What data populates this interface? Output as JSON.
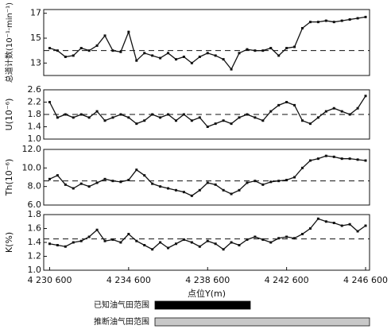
{
  "chart_data": [
    {
      "type": "line",
      "ylabel": "总道计数(10⁻¹·min⁻¹)",
      "color": "#111",
      "x": [
        4230600,
        4231000,
        4231400,
        4231800,
        4232200,
        4232600,
        4233000,
        4233400,
        4233800,
        4234200,
        4234600,
        4235000,
        4235400,
        4235800,
        4236200,
        4236600,
        4237000,
        4237400,
        4237800,
        4238200,
        4238600,
        4239000,
        4239400,
        4239800,
        4240200,
        4240600,
        4241000,
        4241400,
        4241800,
        4242200,
        4242600,
        4243000,
        4243400,
        4243800,
        4244200,
        4244600,
        4245000,
        4245400,
        4245800,
        4246200,
        4246600
      ],
      "values": [
        14.2,
        14.0,
        13.5,
        13.6,
        14.2,
        14.0,
        14.4,
        15.2,
        14.0,
        13.9,
        15.5,
        13.2,
        13.8,
        13.6,
        13.4,
        13.8,
        13.3,
        13.5,
        13.0,
        13.5,
        13.8,
        13.6,
        13.3,
        12.5,
        13.8,
        14.1,
        14.0,
        14.0,
        14.2,
        13.6,
        14.2,
        14.3,
        15.8,
        16.3,
        16.3,
        16.4,
        16.3,
        16.4,
        16.5,
        16.6,
        16.7
      ],
      "xlim": [
        4230300,
        4246800
      ],
      "ylim": [
        12,
        17.3
      ],
      "yticks": [
        13,
        15,
        17
      ],
      "reference": 14
    },
    {
      "type": "line",
      "ylabel": "U(10⁻⁶)",
      "color": "#111",
      "x": [
        4230600,
        4231000,
        4231400,
        4231800,
        4232200,
        4232600,
        4233000,
        4233400,
        4233800,
        4234200,
        4234600,
        4235000,
        4235400,
        4235800,
        4236200,
        4236600,
        4237000,
        4237400,
        4237800,
        4238200,
        4238600,
        4239000,
        4239400,
        4239800,
        4240200,
        4240600,
        4241000,
        4241400,
        4241800,
        4242200,
        4242600,
        4243000,
        4243400,
        4243800,
        4244200,
        4244600,
        4245000,
        4245400,
        4245800,
        4246200,
        4246600
      ],
      "values": [
        2.2,
        1.7,
        1.8,
        1.7,
        1.8,
        1.7,
        1.9,
        1.6,
        1.7,
        1.8,
        1.7,
        1.5,
        1.6,
        1.8,
        1.7,
        1.8,
        1.6,
        1.8,
        1.6,
        1.7,
        1.4,
        1.5,
        1.6,
        1.5,
        1.7,
        1.8,
        1.7,
        1.6,
        1.9,
        2.1,
        2.2,
        2.1,
        1.6,
        1.5,
        1.7,
        1.9,
        2.0,
        1.9,
        1.8,
        2.0,
        2.4
      ],
      "xlim": [
        4230300,
        4246800
      ],
      "ylim": [
        1.0,
        2.6
      ],
      "yticks": [
        {
          "value": 1,
          "label": "1.0"
        },
        1.4,
        1.8,
        2.2,
        2.6
      ],
      "reference": 1.8
    },
    {
      "type": "line",
      "ylabel": "Th(10⁻⁶)",
      "color": "#111",
      "x": [
        4230600,
        4231000,
        4231400,
        4231800,
        4232200,
        4232600,
        4233000,
        4233400,
        4233800,
        4234200,
        4234600,
        4235000,
        4235400,
        4235800,
        4236200,
        4236600,
        4237000,
        4237400,
        4237800,
        4238200,
        4238600,
        4239000,
        4239400,
        4239800,
        4240200,
        4240600,
        4241000,
        4241400,
        4241800,
        4242200,
        4242600,
        4243000,
        4243400,
        4243800,
        4244200,
        4244600,
        4245000,
        4245400,
        4245800,
        4246200,
        4246600
      ],
      "values": [
        8.8,
        9.2,
        8.2,
        7.8,
        8.3,
        8.0,
        8.4,
        8.8,
        8.6,
        8.5,
        8.7,
        9.8,
        9.2,
        8.3,
        8.0,
        7.8,
        7.6,
        7.4,
        7.0,
        7.6,
        8.4,
        8.2,
        7.6,
        7.2,
        7.6,
        8.4,
        8.6,
        8.2,
        8.5,
        8.6,
        8.7,
        9.0,
        10.0,
        10.8,
        11.0,
        11.3,
        11.2,
        11.0,
        11.0,
        10.9,
        10.8
      ],
      "xlim": [
        4230300,
        4246800
      ],
      "ylim": [
        6,
        12
      ],
      "yticks": [
        {
          "value": 6,
          "label": "6.0"
        },
        {
          "value": 8,
          "label": "8.0"
        },
        {
          "value": 10,
          "label": "10.0"
        },
        {
          "value": 12,
          "label": "12.0"
        }
      ],
      "reference": 8.6
    },
    {
      "type": "line",
      "ylabel": "K(%)",
      "color": "#111",
      "xlabel": "点位Y(m)",
      "x": [
        4230600,
        4231000,
        4231400,
        4231800,
        4232200,
        4232600,
        4233000,
        4233400,
        4233800,
        4234200,
        4234600,
        4235000,
        4235400,
        4235800,
        4236200,
        4236600,
        4237000,
        4237400,
        4237800,
        4238200,
        4238600,
        4239000,
        4239400,
        4239800,
        4240200,
        4240600,
        4241000,
        4241400,
        4241800,
        4242200,
        4242600,
        4243000,
        4243400,
        4243800,
        4244200,
        4244600,
        4245000,
        4245400,
        4245800,
        4246200,
        4246600
      ],
      "values": [
        1.38,
        1.36,
        1.34,
        1.4,
        1.42,
        1.48,
        1.58,
        1.42,
        1.44,
        1.4,
        1.52,
        1.42,
        1.36,
        1.3,
        1.4,
        1.32,
        1.38,
        1.44,
        1.4,
        1.34,
        1.42,
        1.38,
        1.3,
        1.4,
        1.36,
        1.44,
        1.48,
        1.44,
        1.4,
        1.46,
        1.48,
        1.46,
        1.52,
        1.6,
        1.74,
        1.7,
        1.68,
        1.64,
        1.66,
        1.56,
        1.64
      ],
      "xlim": [
        4230300,
        4246800
      ],
      "ylim": [
        1.0,
        1.8
      ],
      "yticks": [
        {
          "value": 1,
          "label": "1.0"
        },
        1.2,
        1.4,
        1.6,
        1.8
      ],
      "reference": 1.45,
      "xticks": [
        {
          "value": 4230600,
          "label": "4 230 600"
        },
        {
          "value": 4234600,
          "label": "4 234 600"
        },
        {
          "value": 4238600,
          "label": "4 238 600"
        },
        {
          "value": 4242600,
          "label": "4 242 600"
        },
        {
          "value": 4246600,
          "label": "4 246 600"
        }
      ]
    }
  ],
  "legend": [
    {
      "label": "已知油气田范围",
      "color": "#000000"
    },
    {
      "label": "推断油气田范围",
      "color": "#c8c8c8"
    }
  ]
}
